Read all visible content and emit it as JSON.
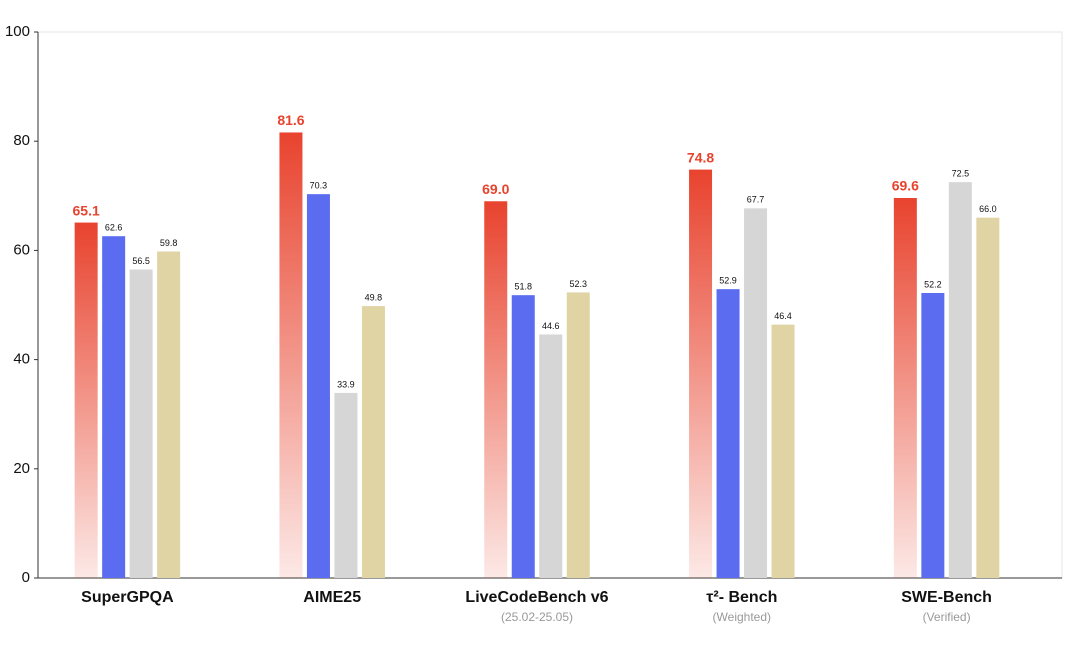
{
  "chart_data": {
    "type": "bar",
    "categories": [
      "SuperGPQA",
      "AIME25",
      "LiveCodeBench v6",
      "τ²- Bench",
      "SWE-Bench"
    ],
    "category_subtitles": [
      null,
      null,
      "(25.02-25.05)",
      "(Weighted)",
      "(Verified)"
    ],
    "series": [
      {
        "color": "#e8432e",
        "gradient": true,
        "values": [
          65.1,
          81.6,
          69.0,
          74.8,
          69.6
        ],
        "value_labels": [
          "65.1",
          "81.6",
          "69.0",
          "74.8",
          "69.6"
        ]
      },
      {
        "color": "#5b6cf0",
        "values": [
          62.6,
          70.3,
          51.8,
          52.9,
          52.2
        ],
        "value_labels": [
          "62.6",
          "70.3",
          "51.8",
          "52.9",
          "52.2"
        ]
      },
      {
        "color": "#d6d6d6",
        "values": [
          56.5,
          33.9,
          44.6,
          67.7,
          72.5
        ],
        "value_labels": [
          "56.5",
          "33.9",
          "44.6",
          "67.7",
          "72.5"
        ]
      },
      {
        "color": "#e0d3a4",
        "values": [
          59.8,
          49.8,
          52.3,
          46.4,
          66.0
        ],
        "value_labels": [
          "59.8",
          "49.8",
          "52.3",
          "46.4",
          "66.0"
        ]
      }
    ],
    "ylim": [
      0,
      100
    ],
    "yticks": [
      0,
      20,
      40,
      60,
      80,
      100
    ],
    "grid": false
  }
}
